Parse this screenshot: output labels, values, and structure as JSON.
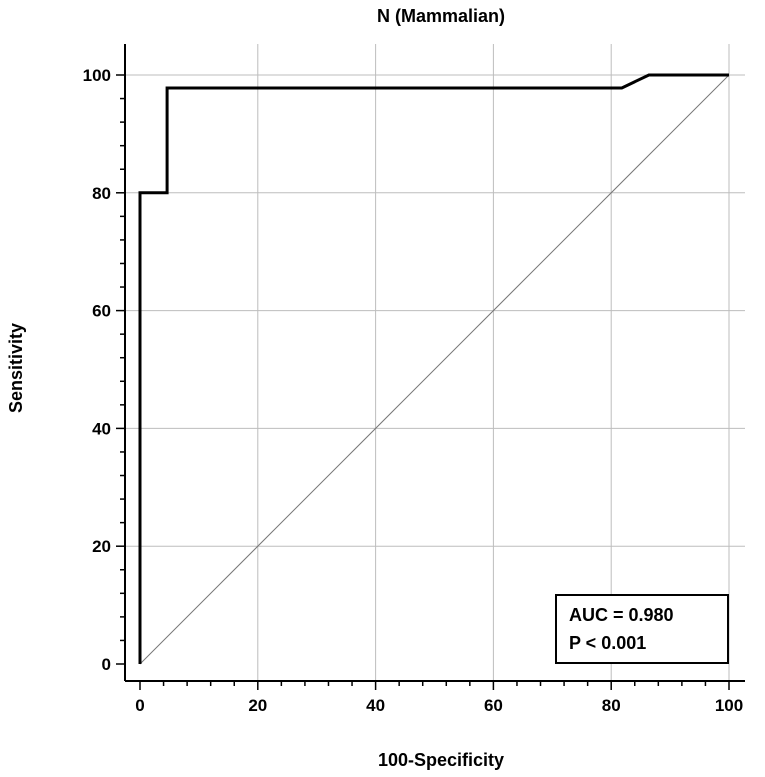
{
  "chart_data": {
    "type": "line",
    "title": "N (Mammalian)",
    "xlabel": "100-Specificity",
    "ylabel": "Sensitivity",
    "xlim": [
      0,
      100
    ],
    "ylim": [
      0,
      100
    ],
    "x_ticks": [
      0,
      20,
      40,
      60,
      80,
      100
    ],
    "y_ticks": [
      0,
      20,
      40,
      60,
      80,
      100
    ],
    "x_minor_step": 4,
    "y_minor_step": 4,
    "grid": true,
    "series": [
      {
        "x": [
          0,
          0,
          4.6,
          4.6,
          81.8,
          86.4,
          100
        ],
        "y": [
          0,
          80,
          80,
          97.8,
          97.8,
          100,
          100
        ],
        "color": "#000000"
      }
    ],
    "reference_line": {
      "x": [
        0,
        100
      ],
      "y": [
        0,
        100
      ],
      "color": "#777777"
    },
    "annotation": {
      "auc_text": "AUC = 0.980",
      "p_text": "P < 0.001"
    }
  }
}
